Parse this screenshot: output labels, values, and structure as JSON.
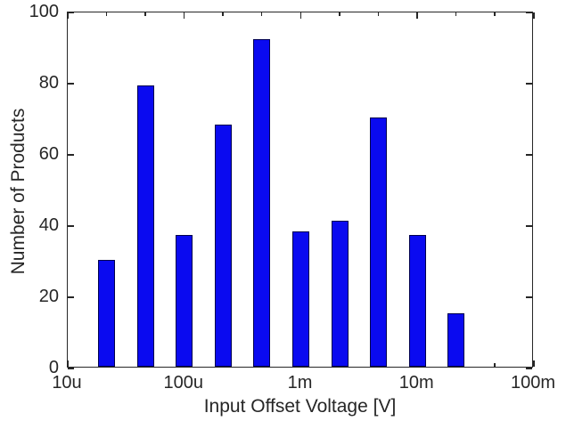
{
  "figure": {
    "background": "#ffffff"
  },
  "chart_data": {
    "type": "bar",
    "title": "",
    "xlabel": "Input Offset Voltage [V]",
    "ylabel": "Number of Products",
    "x_scale": "log10",
    "xlim_log10": [
      -5,
      -1
    ],
    "ylim": [
      0,
      100
    ],
    "grid": false,
    "legend": false,
    "x_tick_labels": [
      "10u",
      "100u",
      "1m",
      "10m",
      "100m"
    ],
    "x_tick_log10": [
      -5,
      -4,
      -3,
      -2,
      -1
    ],
    "x_minor_tick_log10": [
      -4.6667,
      -4.3333,
      -3.6667,
      -3.3333,
      -2.6667,
      -2.3333,
      -1.6667,
      -1.3333
    ],
    "y_tick_labels": [
      "0",
      "20",
      "40",
      "60",
      "80",
      "100"
    ],
    "y_ticks": [
      0,
      20,
      40,
      60,
      80,
      100
    ],
    "categories": [
      "20u",
      "50u",
      "100u",
      "200u",
      "500u",
      "1m",
      "2m",
      "5m",
      "10m",
      "20m"
    ],
    "x_log10": [
      -4.6667,
      -4.3333,
      -4,
      -3.6667,
      -3.3333,
      -3,
      -2.6667,
      -2.3333,
      -2,
      -1.6667
    ],
    "values": [
      30,
      79,
      37,
      68,
      92,
      38,
      41,
      70,
      37,
      15
    ],
    "bar_color": "#0a0af0",
    "bar_edge_color": "#00004d",
    "axis_color": "#262626",
    "text_color": "#262626"
  }
}
